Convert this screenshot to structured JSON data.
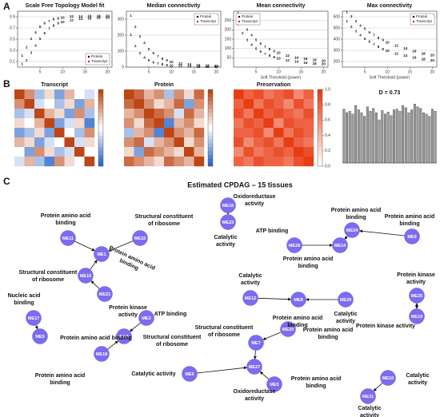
{
  "panel_labels": [
    "A",
    "B",
    "C"
  ],
  "chart_data": [
    {
      "type": "scatter",
      "title": "Scale Free Topology Model fit",
      "x": [
        1,
        2,
        3,
        4,
        5,
        6,
        7,
        8,
        9,
        10,
        12,
        14,
        16,
        18,
        20
      ],
      "xlim": [
        0,
        21
      ],
      "xticks": [
        5,
        10,
        15,
        20
      ],
      "ylim": [
        0,
        1
      ],
      "yticks": [
        0.1,
        0.3,
        0.5,
        0.7,
        0.9
      ],
      "grid": true,
      "legend": "bottom-right",
      "series": [
        {
          "name": "Protein",
          "color": "#000000",
          "values": [
            0.2,
            0.35,
            0.5,
            0.62,
            0.72,
            0.78,
            0.82,
            0.85,
            0.87,
            0.88,
            0.9,
            0.9,
            0.91,
            0.91,
            0.91
          ]
        },
        {
          "name": "Transcript",
          "color": "#e31a1c",
          "values": [
            0.05,
            0.12,
            0.25,
            0.38,
            0.5,
            0.6,
            0.68,
            0.74,
            0.78,
            0.8,
            0.84,
            0.86,
            0.87,
            0.88,
            0.88
          ]
        }
      ]
    },
    {
      "type": "scatter",
      "title": "Median connectivity",
      "x": [
        1,
        2,
        3,
        4,
        5,
        6,
        7,
        8,
        9,
        10,
        12,
        14,
        16,
        18,
        20
      ],
      "xlim": [
        0,
        21
      ],
      "xticks": [
        5,
        10,
        15,
        20
      ],
      "ylim": [
        0,
        350
      ],
      "yticks": [
        0,
        100,
        200,
        300
      ],
      "grid": true,
      "legend": "top-right",
      "series": [
        {
          "name": "Protein",
          "color": "#000000",
          "values": [
            320,
            250,
            190,
            150,
            110,
            85,
            65,
            50,
            40,
            32,
            22,
            16,
            12,
            9,
            7
          ]
        },
        {
          "name": "Transcript",
          "color": "#e31a1c",
          "values": [
            200,
            130,
            85,
            58,
            40,
            28,
            20,
            15,
            11,
            8,
            5,
            3,
            2,
            2,
            1
          ]
        }
      ]
    },
    {
      "type": "scatter",
      "title": "Mean connectivity",
      "xlabel": "Soft Threshold (power)",
      "x": [
        1,
        2,
        3,
        4,
        5,
        6,
        7,
        8,
        9,
        10,
        12,
        14,
        16,
        18,
        20
      ],
      "xlim": [
        0,
        21
      ],
      "xticks": [
        5,
        10,
        15,
        20
      ],
      "ylim": [
        0,
        300
      ],
      "yticks": [
        50,
        100,
        150,
        200,
        250
      ],
      "grid": true,
      "legend": "top-left",
      "series": [
        {
          "name": "Protein",
          "color": "#000000",
          "values": [
            290,
            240,
            200,
            170,
            145,
            125,
            108,
            95,
            84,
            75,
            61,
            51,
            43,
            37,
            32
          ]
        },
        {
          "name": "Transcript",
          "color": "#e31a1c",
          "values": [
            230,
            180,
            145,
            118,
            98,
            82,
            70,
            60,
            52,
            45,
            35,
            28,
            23,
            19,
            16
          ]
        }
      ]
    },
    {
      "type": "scatter",
      "title": "Max connectivity",
      "xlabel": "Soft Threshold (power)",
      "x": [
        1,
        2,
        3,
        4,
        5,
        6,
        7,
        8,
        9,
        10,
        12,
        14,
        16,
        18,
        20
      ],
      "xlim": [
        0,
        21
      ],
      "xticks": [
        5,
        10,
        15,
        20
      ],
      "ylim": [
        150,
        650
      ],
      "yticks": [
        200,
        300,
        400,
        500,
        600
      ],
      "grid": true,
      "legend": "top-right",
      "series": [
        {
          "name": "Protein",
          "color": "#000000",
          "values": [
            640,
            600,
            560,
            520,
            490,
            460,
            435,
            410,
            390,
            370,
            340,
            315,
            290,
            270,
            255
          ]
        },
        {
          "name": "Transcript",
          "color": "#e31a1c",
          "values": [
            560,
            510,
            470,
            435,
            400,
            375,
            350,
            330,
            310,
            295,
            270,
            250,
            235,
            220,
            210
          ]
        }
      ]
    },
    {
      "type": "heatmap",
      "title": "Transcript",
      "scale": "diverging",
      "values": [
        [
          1,
          0.8,
          0.3,
          0.6,
          0.2,
          0.7,
          0.5,
          0.4
        ],
        [
          0.8,
          1,
          0.4,
          0.5,
          0.3,
          0.6,
          0.2,
          0.7
        ],
        [
          0.3,
          0.4,
          1,
          0.7,
          0.6,
          0.2,
          0.8,
          0.3
        ],
        [
          0.6,
          0.5,
          0.7,
          1,
          0.2,
          0.4,
          0.6,
          0.1
        ],
        [
          0.2,
          0.3,
          0.6,
          0.2,
          1,
          0.5,
          0.3,
          0.8
        ],
        [
          0.7,
          0.6,
          0.2,
          0.4,
          0.5,
          1,
          0.4,
          0.6
        ],
        [
          0.5,
          0.2,
          0.8,
          0.6,
          0.3,
          0.4,
          1,
          0.5
        ],
        [
          0.4,
          0.7,
          0.3,
          0.1,
          0.8,
          0.6,
          0.5,
          1
        ]
      ]
    },
    {
      "type": "heatmap",
      "title": "Protein",
      "scale": "diverging",
      "values": [
        [
          1,
          0.9,
          0.7,
          0.8,
          0.3,
          0.8,
          0.6,
          0.9
        ],
        [
          0.9,
          1,
          0.8,
          0.6,
          0.7,
          0.9,
          0.2,
          0.8
        ],
        [
          0.7,
          0.8,
          1,
          0.9,
          0.8,
          0.4,
          0.9,
          0.7
        ],
        [
          0.8,
          0.6,
          0.9,
          1,
          0.1,
          0.7,
          0.8,
          0.6
        ],
        [
          0.3,
          0.7,
          0.8,
          0.1,
          1,
          0.8,
          0.7,
          0.9
        ],
        [
          0.8,
          0.9,
          0.4,
          0.7,
          0.8,
          1,
          0.6,
          0.8
        ],
        [
          0.6,
          0.2,
          0.9,
          0.8,
          0.7,
          0.6,
          1,
          0.7
        ],
        [
          0.9,
          0.8,
          0.7,
          0.6,
          0.9,
          0.8,
          0.7,
          1
        ]
      ]
    },
    {
      "type": "heatmap",
      "title": "Preservation",
      "scale": "sequential",
      "colorbar_ticks": [
        {
          "value": 0,
          "label": "0.0"
        },
        0.2,
        0.4,
        0.6,
        0.8,
        {
          "value": 1,
          "label": "1.0"
        }
      ],
      "values": [
        [
          1,
          0.8,
          0.9,
          0.7,
          0.8,
          0.9,
          0.6,
          0.8
        ],
        [
          0.8,
          1,
          0.7,
          0.9,
          0.8,
          0.6,
          0.9,
          0.7
        ],
        [
          0.9,
          0.7,
          1,
          0.8,
          0.9,
          0.8,
          0.7,
          0.9
        ],
        [
          0.7,
          0.9,
          0.8,
          1,
          0.6,
          0.9,
          0.8,
          0.8
        ],
        [
          0.8,
          0.8,
          0.9,
          0.6,
          1,
          0.7,
          0.9,
          0.8
        ],
        [
          0.9,
          0.6,
          0.8,
          0.9,
          0.7,
          1,
          0.8,
          0.7
        ],
        [
          0.6,
          0.9,
          0.7,
          0.8,
          0.9,
          0.8,
          1,
          0.9
        ],
        [
          0.8,
          0.7,
          0.9,
          0.8,
          0.8,
          0.7,
          0.9,
          1
        ]
      ]
    },
    {
      "type": "bar",
      "title": "D = 0.73",
      "ylim": [
        0,
        1
      ],
      "color": "#9a9a9a",
      "values": [
        0.75,
        0.7,
        0.72,
        0.68,
        0.8,
        0.74,
        0.7,
        0.65,
        0.78,
        0.72,
        0.76,
        0.7,
        0.6,
        0.73,
        0.68,
        0.71,
        0.66,
        0.74,
        0.75,
        0.72,
        0.8,
        0.77,
        0.7,
        0.74,
        0.82,
        0.78,
        0.76,
        0.7,
        0.68,
        0.65,
        0.75,
        0.72
      ]
    }
  ],
  "network": {
    "title": "Estimated CPDAG – 15 tissues",
    "nodes": [
      {
        "label": "ME16"
      },
      {
        "label": "ME23"
      },
      {
        "label": "ME11"
      },
      {
        "label": "ME22"
      },
      {
        "label": "ME1"
      },
      {
        "label": "ME15"
      },
      {
        "label": "ME21"
      },
      {
        "label": "ME17"
      },
      {
        "label": "ME9"
      },
      {
        "label": "ME3"
      },
      {
        "label": "ME4"
      },
      {
        "label": "ME18"
      },
      {
        "label": "ME28"
      },
      {
        "label": "ME14"
      },
      {
        "label": "ME24"
      },
      {
        "label": "ME0"
      },
      {
        "label": "ME12"
      },
      {
        "label": "ME8"
      },
      {
        "label": "ME29"
      },
      {
        "label": "ME26"
      },
      {
        "label": "ME19"
      },
      {
        "label": "ME10"
      },
      {
        "label": "ME31"
      },
      {
        "label": "ME20"
      },
      {
        "label": "ME7"
      },
      {
        "label": "ME27"
      },
      {
        "label": "ME6"
      },
      {
        "label": "ME5"
      }
    ],
    "annotations": [
      {
        "lines": [
          "Oxidoreductase",
          "activity"
        ]
      },
      {
        "lines": [
          "Catalytic",
          "activity"
        ]
      },
      {
        "lines": [
          "Protein amino acid",
          "binding"
        ]
      },
      {
        "lines": [
          "Structural constituent",
          "of ribosome"
        ]
      },
      {
        "lines": [
          "Protein amino acid",
          "binding"
        ]
      },
      {
        "lines": [
          "Structural constituent",
          "of ribosome"
        ]
      },
      {
        "lines": [
          "Protein kinase",
          "activity"
        ]
      },
      {
        "lines": [
          "Nucleic acid",
          "binding"
        ]
      },
      {
        "lines": [
          "Protein amino acid binding"
        ]
      },
      {
        "lines": [
          "ATP binding"
        ]
      },
      {
        "lines": [
          "Structural constituent",
          "of ribosome"
        ]
      },
      {
        "lines": [
          "Protein amino acid",
          "binding"
        ]
      },
      {
        "lines": [
          "ATP binding"
        ]
      },
      {
        "lines": [
          "Protein amino acid",
          "binding"
        ]
      },
      {
        "lines": [
          "Protein amino acid",
          "binding"
        ]
      },
      {
        "lines": [
          "Protein amino acid",
          "binding"
        ]
      },
      {
        "lines": [
          "Catalytic",
          "activity"
        ]
      },
      {
        "lines": [
          "Protein amino acid",
          "binding"
        ]
      },
      {
        "lines": [
          "Catalytic",
          "activity"
        ]
      },
      {
        "lines": [
          "Protein kinase",
          "activity"
        ]
      },
      {
        "lines": [
          "Protein kinase activity"
        ]
      },
      {
        "lines": [
          "Catalytic",
          "activity"
        ]
      },
      {
        "lines": [
          "Catalytic",
          "activity"
        ]
      },
      {
        "lines": [
          "Structural constituent",
          "of ribosome"
        ]
      },
      {
        "lines": [
          "Protein amino acid",
          "binding"
        ]
      },
      {
        "lines": [
          "Catalytic activity"
        ]
      },
      {
        "lines": [
          "Protein amino acid",
          "binding"
        ]
      },
      {
        "lines": [
          "Oxidoreductase",
          "activity"
        ]
      }
    ]
  }
}
